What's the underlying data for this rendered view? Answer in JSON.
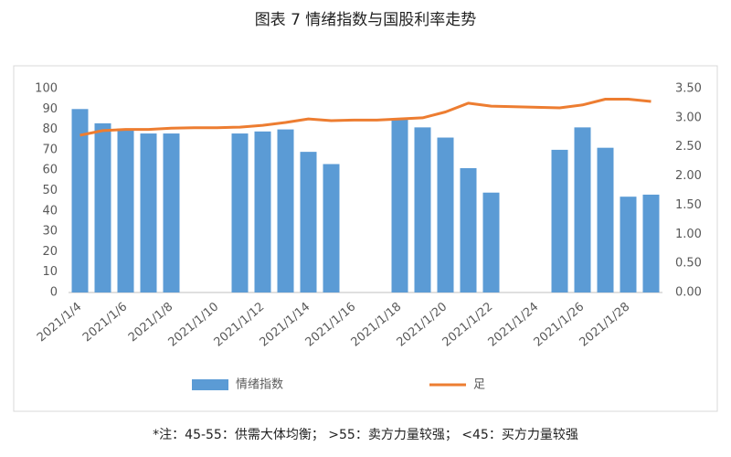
{
  "chart_data": {
    "type": "bar_line",
    "title": "图表 7  情绪指数与国股利率走势",
    "categories": [
      "2021/1/4",
      null,
      "2021/1/6",
      null,
      "2021/1/8",
      null,
      "2021/1/10",
      null,
      "2021/1/12",
      null,
      "2021/1/14",
      null,
      "2021/1/16",
      null,
      "2021/1/18",
      null,
      "2021/1/20",
      null,
      "2021/1/22",
      null,
      "2021/1/24",
      null,
      "2021/1/26",
      null,
      "2021/1/28",
      null
    ],
    "series": [
      {
        "name": "情绪指数",
        "type": "bar",
        "color": "#5b9bd5",
        "values": [
          90,
          83,
          80,
          78,
          78,
          null,
          null,
          78,
          79,
          80,
          69,
          63,
          null,
          null,
          85,
          81,
          76,
          61,
          49,
          null,
          null,
          70,
          81,
          71,
          47,
          48
        ]
      },
      {
        "name": "足",
        "type": "line",
        "axis": "y2",
        "color": "#ed7d31",
        "values": [
          2.7,
          2.78,
          2.8,
          2.8,
          2.82,
          2.83,
          2.83,
          2.84,
          2.87,
          2.92,
          2.98,
          2.95,
          2.96,
          2.96,
          2.98,
          3.0,
          3.1,
          3.25,
          3.2,
          3.19,
          3.18,
          3.17,
          3.22,
          3.32,
          3.32,
          3.28
        ]
      }
    ],
    "ylim": [
      0,
      100
    ],
    "yticks": [
      0,
      10,
      20,
      30,
      40,
      50,
      60,
      70,
      80,
      90,
      100
    ],
    "y2lim": [
      0,
      3.5
    ],
    "y2ticks": [
      {
        "value": 0,
        "label": "0.00"
      },
      {
        "value": 0.5,
        "label": "0.50"
      },
      {
        "value": 1,
        "label": "1.00"
      },
      {
        "value": 1.5,
        "label": "1.50"
      },
      {
        "value": 2,
        "label": "2.00"
      },
      {
        "value": 2.5,
        "label": "2.50"
      },
      {
        "value": 3,
        "label": "3.00"
      },
      {
        "value": 3.5,
        "label": "3.50"
      }
    ],
    "grid": false,
    "legend": "bottom",
    "note": "*注：45-55：供需大体均衡； >55：卖方力量较强； <45：买方力量较强"
  }
}
